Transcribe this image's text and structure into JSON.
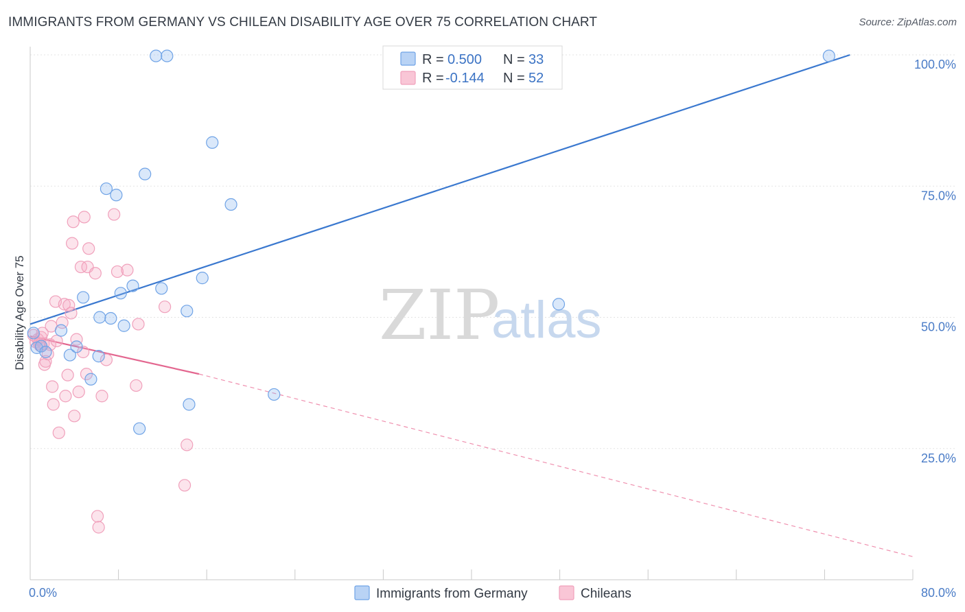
{
  "title": "IMMIGRANTS FROM GERMANY VS CHILEAN DISABILITY AGE OVER 75 CORRELATION CHART",
  "source": "Source: ZipAtlas.com",
  "watermark": {
    "zip": "ZIP",
    "atlas": "atlas"
  },
  "chart_data": {
    "type": "scatter",
    "xlabel": "",
    "ylabel": "Disability Age Over 75",
    "xlim": [
      0,
      80
    ],
    "ylim": [
      0,
      105
    ],
    "x_tick_labels": [
      "0.0%",
      "80.0%"
    ],
    "y_ticks": [
      25,
      50,
      75,
      100
    ],
    "y_tick_labels": [
      "25.0%",
      "50.0%",
      "75.0%",
      "100.0%"
    ],
    "grid": true,
    "series": [
      {
        "name": "Immigrants from Germany",
        "color": "#6fa3e6",
        "R": "0.500",
        "N": "33",
        "points": [
          [
            0.3,
            47.0
          ],
          [
            0.6,
            44.2
          ],
          [
            1.0,
            44.5
          ],
          [
            1.4,
            43.4
          ],
          [
            2.8,
            47.5
          ],
          [
            3.6,
            42.8
          ],
          [
            4.2,
            44.4
          ],
          [
            4.8,
            53.8
          ],
          [
            5.5,
            38.2
          ],
          [
            6.2,
            42.6
          ],
          [
            6.3,
            50.0
          ],
          [
            6.9,
            74.5
          ],
          [
            7.3,
            49.8
          ],
          [
            7.8,
            73.3
          ],
          [
            8.2,
            54.6
          ],
          [
            8.5,
            48.4
          ],
          [
            9.3,
            56.0
          ],
          [
            9.9,
            28.8
          ],
          [
            10.4,
            77.3
          ],
          [
            11.4,
            99.8
          ],
          [
            11.9,
            55.5
          ],
          [
            12.4,
            99.8
          ],
          [
            14.2,
            51.2
          ],
          [
            14.4,
            33.4
          ],
          [
            15.6,
            57.5
          ],
          [
            16.5,
            83.3
          ],
          [
            18.2,
            71.5
          ],
          [
            22.1,
            35.3
          ],
          [
            47.9,
            52.5
          ],
          [
            72.4,
            99.8
          ]
        ],
        "trend": {
          "x": [
            0,
            74.3
          ],
          "y": [
            48.7,
            100.0
          ],
          "style": "solid"
        }
      },
      {
        "name": "Chileans",
        "color": "#f29ab6",
        "R": "-0.144",
        "N": "52",
        "points": [
          [
            0.3,
            46.6
          ],
          [
            0.5,
            45.3
          ],
          [
            0.7,
            45.8
          ],
          [
            0.9,
            44.6
          ],
          [
            1.0,
            46.2
          ],
          [
            1.2,
            45.0
          ],
          [
            1.3,
            41.0
          ],
          [
            1.4,
            41.6
          ],
          [
            1.6,
            43.0
          ],
          [
            1.8,
            44.8
          ],
          [
            1.9,
            48.3
          ],
          [
            2.0,
            36.8
          ],
          [
            2.1,
            33.4
          ],
          [
            2.3,
            53.0
          ],
          [
            2.6,
            28.0
          ],
          [
            2.9,
            49.0
          ],
          [
            3.1,
            52.5
          ],
          [
            3.2,
            35.0
          ],
          [
            3.4,
            39.0
          ],
          [
            3.5,
            52.3
          ],
          [
            3.7,
            50.8
          ],
          [
            3.8,
            64.1
          ],
          [
            3.9,
            68.2
          ],
          [
            4.0,
            31.2
          ],
          [
            4.2,
            45.8
          ],
          [
            4.4,
            35.8
          ],
          [
            4.6,
            59.6
          ],
          [
            4.8,
            43.4
          ],
          [
            4.9,
            69.1
          ],
          [
            5.1,
            39.2
          ],
          [
            5.2,
            59.6
          ],
          [
            5.3,
            63.1
          ],
          [
            5.9,
            58.4
          ],
          [
            6.1,
            12.1
          ],
          [
            6.2,
            10.0
          ],
          [
            6.5,
            35.0
          ],
          [
            6.9,
            41.9
          ],
          [
            7.6,
            69.6
          ],
          [
            7.9,
            58.7
          ],
          [
            8.8,
            59.0
          ],
          [
            9.6,
            37.0
          ],
          [
            9.8,
            48.7
          ],
          [
            12.2,
            52.0
          ],
          [
            14.0,
            18.0
          ],
          [
            14.2,
            25.7
          ],
          [
            2.4,
            45.5
          ],
          [
            1.1,
            47.0
          ],
          [
            0.8,
            45.0
          ]
        ],
        "trend_solid": {
          "x": [
            0,
            15.3
          ],
          "y": [
            46.4,
            39.2
          ],
          "style": "solid"
        },
        "trend_dashed": {
          "x": [
            15.3,
            80
          ],
          "y": [
            39.2,
            4.4
          ],
          "style": "dashed"
        }
      }
    ]
  },
  "legend_top": {
    "r_label": "R =",
    "n_label": "N ="
  }
}
